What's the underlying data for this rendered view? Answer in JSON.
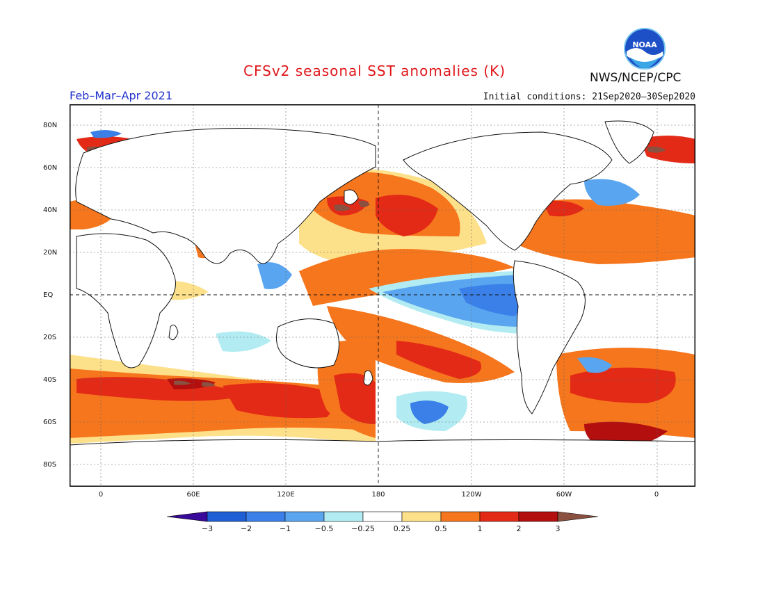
{
  "title": "CFSv2 seasonal SST anomalies (K)",
  "period": "Feb–Mar–Apr 2021",
  "initial_conditions": "Initial conditions: 21Sep2020–30Sep2020",
  "agency": "NWS/NCEP/CPC",
  "logo_text": "NOAA",
  "lat_labels": [
    "80N",
    "60N",
    "40N",
    "20N",
    "EQ",
    "20S",
    "40S",
    "60S",
    "80S"
  ],
  "lon_labels": [
    "0",
    "60E",
    "120E",
    "180",
    "120W",
    "60W",
    "0"
  ],
  "colorbar": {
    "labels": [
      "−3",
      "−2",
      "−1",
      "−0.5",
      "−0.25",
      "0.25",
      "0.5",
      "1",
      "2",
      "3"
    ],
    "colors": [
      "#3a0a9a",
      "#1f5fd6",
      "#3a80e8",
      "#5aa5ef",
      "#b2ecf2",
      "#ffffff",
      "#fde08a",
      "#f6761d",
      "#e32a16",
      "#b30f0e",
      "#8a5040"
    ]
  },
  "colors": {
    "land": "#ffffff",
    "ocean_neutral": "#ffffff",
    "title": "#e0161a",
    "period": "#2233cc"
  }
}
